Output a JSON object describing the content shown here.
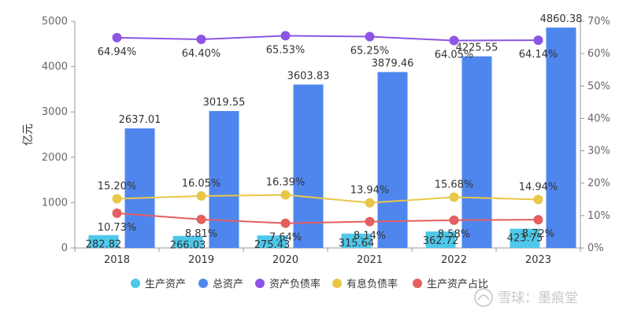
{
  "chart_data": {
    "type": "bar",
    "categories": [
      "2018",
      "2019",
      "2020",
      "2021",
      "2022",
      "2023"
    ],
    "ylabel": "亿元",
    "ylim": [
      0,
      5000
    ],
    "y_ticks": [
      "0",
      "1000",
      "2000",
      "3000",
      "4000",
      "5000"
    ],
    "y2lim": [
      0,
      70
    ],
    "y2_ticks": [
      "0%",
      "10%",
      "20%",
      "30%",
      "40%",
      "50%",
      "60%",
      "70%"
    ],
    "series": [
      {
        "name": "生产资产",
        "kind": "bar",
        "axis": "left",
        "color": "#4ec8ea",
        "values": [
          282.82,
          266.03,
          275.43,
          315.64,
          362.72,
          423.75
        ],
        "labels": [
          "282.82",
          "266.03",
          "275.43",
          "315.64",
          "362.72",
          "423.75"
        ]
      },
      {
        "name": "总资产",
        "kind": "bar",
        "axis": "left",
        "color": "#4f86ee",
        "values": [
          2637.01,
          3019.55,
          3603.83,
          3879.46,
          4225.55,
          4860.38
        ],
        "labels": [
          "2637.01",
          "3019.55",
          "3603.83",
          "3879.46",
          "4225.55",
          "4860.38"
        ]
      },
      {
        "name": "资产负债率",
        "kind": "line",
        "axis": "right",
        "color": "#8c55e6",
        "values": [
          64.94,
          64.4,
          65.53,
          65.25,
          64.05,
          64.14
        ],
        "labels": [
          "64.94%",
          "64.40%",
          "65.53%",
          "65.25%",
          "64.05%",
          "64.14%"
        ]
      },
      {
        "name": "有息负债率",
        "kind": "line",
        "axis": "right",
        "color": "#e9c647",
        "values": [
          15.2,
          16.05,
          16.39,
          13.94,
          15.68,
          14.94
        ],
        "labels": [
          "15.20%",
          "16.05%",
          "16.39%",
          "13.94%",
          "15.68%",
          "14.94%"
        ]
      },
      {
        "name": "生产资产占比",
        "kind": "line",
        "axis": "right",
        "color": "#e45f5f",
        "values": [
          10.73,
          8.81,
          7.64,
          8.14,
          8.58,
          8.72
        ],
        "labels": [
          "10.73%",
          "8.81%",
          "7.64%",
          "8.14%",
          "8.58%",
          "8.72%"
        ]
      }
    ]
  },
  "watermark": "雪球：墨痕堂"
}
